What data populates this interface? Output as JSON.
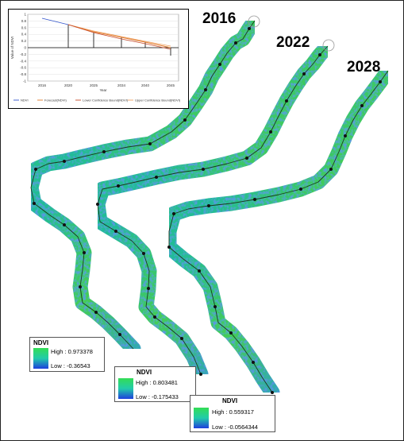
{
  "map": {
    "year_labels": [
      "2016",
      "2022",
      "2028"
    ]
  },
  "inset_chart": {
    "type": "line",
    "ylabel": "Value of NDVI",
    "xlabel": "Year",
    "x_ticks": [
      "2016",
      "2020",
      "2025",
      "2034",
      "2040",
      "2045"
    ],
    "y_ticks": [
      "1",
      "0.8",
      "0.6",
      "0.4",
      "0.2",
      "0",
      "-0.2",
      "-0.4",
      "-0.6",
      "-0.8",
      "-1"
    ],
    "ylim": [
      -1,
      1
    ],
    "legend": [
      "NDVI",
      "Forecast(NDVI)",
      "Lower Confidence Bound(NDVI)",
      "Upper Confidence Bound(NDVI)"
    ],
    "colors": {
      "ndvi": "#3355cc",
      "forecast": "#e07a2a",
      "lower": "#c84a2a",
      "upper": "#f0a060"
    }
  },
  "legends": [
    {
      "title": "NDVI",
      "high": "High : 0.973378",
      "low": "Low : -0.36543"
    },
    {
      "title": "NDVI",
      "high": "High : 0.803481",
      "low": "Low : -0.175433"
    },
    {
      "title": "NDVI",
      "high": "High : 0.559317",
      "low": "Low : -0.0564344"
    }
  ],
  "ramp_colors": {
    "high": "#33dd55",
    "mid": "#22ccaa",
    "low": "#1f3fdd"
  }
}
